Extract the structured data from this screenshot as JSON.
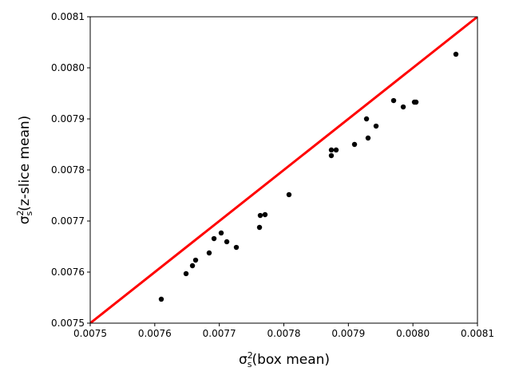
{
  "chart_data": {
    "type": "scatter",
    "xlabel": {
      "symbol": "σ",
      "sub": "s",
      "sup": "2",
      "text": "(box mean)"
    },
    "ylabel": {
      "symbol": "σ",
      "sub": "s",
      "sup": "2",
      "text": "(z-slice mean)"
    },
    "xlim": [
      0.0075,
      0.0081
    ],
    "ylim": [
      0.0075,
      0.0081
    ],
    "xticks": [
      0.0075,
      0.0076,
      0.0077,
      0.0078,
      0.0079,
      {
        "value": 0.008,
        "label": "0.0080"
      },
      0.0081
    ],
    "yticks": [
      0.0075,
      0.0076,
      0.0077,
      0.0078,
      0.0079,
      {
        "value": 0.008,
        "label": "0.0080"
      },
      0.0081
    ],
    "identity_line_color": "#ff0000",
    "series": [
      {
        "color": "#000000",
        "x": [
          0.0076101,
          0.0076485,
          0.0076584,
          0.0076633,
          0.0076843,
          0.0076918,
          0.0077029,
          0.0077116,
          0.0077264,
          0.0077623,
          0.0077635,
          0.0077709,
          0.007808,
          0.0078736,
          0.0078736,
          0.007881,
          0.0079095,
          0.0079281,
          0.0079305,
          0.0079429,
          0.0079701,
          0.007985,
          0.0080023,
          0.0080048,
          0.0080666
        ],
        "values": [
          0.0075469,
          0.0075969,
          0.0076125,
          0.0076234,
          0.0076375,
          0.0076656,
          0.0076766,
          0.0076594,
          0.0076484,
          0.0076875,
          0.0077109,
          0.0077125,
          0.0077516,
          0.0078391,
          0.0078281,
          0.0078391,
          0.00785,
          0.0079,
          0.0078625,
          0.0078859,
          0.0079359,
          0.0079234,
          0.0079328,
          0.0079328,
          0.0080266
        ]
      }
    ]
  }
}
